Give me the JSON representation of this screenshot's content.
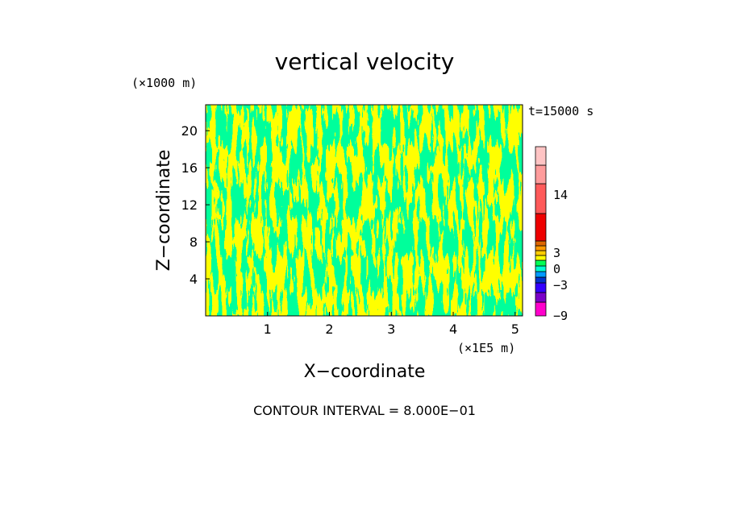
{
  "chart_data": {
    "type": "heatmap",
    "title": "vertical velocity",
    "time_label": "t=15000 s",
    "xlabel": "X−coordinate",
    "ylabel": "Z−coordinate",
    "x_unit_label": "(×1E5 m)",
    "y_unit_label": "(×1000 m)",
    "footer": "CONTOUR INTERVAL = 8.000E−01",
    "xlim": [
      0,
      5.12
    ],
    "ylim": [
      0,
      22.8
    ],
    "x_ticks": [
      "1",
      "2",
      "3",
      "4",
      "5"
    ],
    "x_tick_values": [
      1,
      2,
      3,
      4,
      5
    ],
    "y_ticks": [
      "4",
      "8",
      "12",
      "16",
      "20"
    ],
    "y_tick_values": [
      4,
      8,
      12,
      16,
      20
    ],
    "field_colors": {
      "positive_small": "#ffff00",
      "negative_small": "#00ff55",
      "background": "#ffffff"
    },
    "colorbar": {
      "labels": [
        "14",
        "3",
        "0",
        "−3",
        "−9"
      ],
      "bands": [
        {
          "color": "#ff00cc"
        },
        {
          "color": "#7a00c8"
        },
        {
          "color": "#3300ff"
        },
        {
          "color": "#0033cc"
        },
        {
          "color": "#0099ff"
        },
        {
          "color": "#00ffd0"
        },
        {
          "color": "#00ff55"
        },
        {
          "color": "#ffff00"
        },
        {
          "color": "#ffcc00"
        },
        {
          "color": "#ff9900"
        },
        {
          "color": "#dd6600"
        },
        {
          "color": "#ee0000"
        },
        {
          "color": "#ff5a5a"
        },
        {
          "color": "#ff9c9c"
        },
        {
          "color": "#ffc4c4"
        }
      ]
    }
  }
}
